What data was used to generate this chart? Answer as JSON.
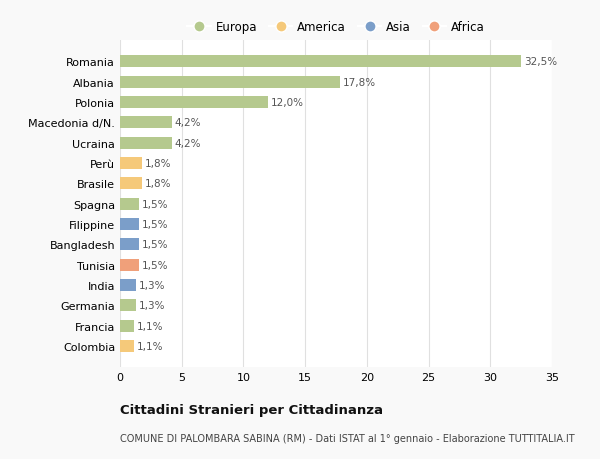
{
  "categories": [
    "Romania",
    "Albania",
    "Polonia",
    "Macedonia d/N.",
    "Ucraina",
    "Perù",
    "Brasile",
    "Spagna",
    "Filippine",
    "Bangladesh",
    "Tunisia",
    "India",
    "Germania",
    "Francia",
    "Colombia"
  ],
  "values": [
    32.5,
    17.8,
    12.0,
    4.2,
    4.2,
    1.8,
    1.8,
    1.5,
    1.5,
    1.5,
    1.5,
    1.3,
    1.3,
    1.1,
    1.1
  ],
  "labels": [
    "32,5%",
    "17,8%",
    "12,0%",
    "4,2%",
    "4,2%",
    "1,8%",
    "1,8%",
    "1,5%",
    "1,5%",
    "1,5%",
    "1,5%",
    "1,3%",
    "1,3%",
    "1,1%",
    "1,1%"
  ],
  "bar_colors": [
    "#b5c98e",
    "#b5c98e",
    "#b5c98e",
    "#b5c98e",
    "#b5c98e",
    "#f5c97a",
    "#f5c97a",
    "#b5c98e",
    "#7b9ec9",
    "#7b9ec9",
    "#f0a07a",
    "#7b9ec9",
    "#b5c98e",
    "#b5c98e",
    "#f5c97a"
  ],
  "legend_labels": [
    "Europa",
    "America",
    "Asia",
    "Africa"
  ],
  "legend_colors": [
    "#b5c98e",
    "#f5c97a",
    "#7b9ec9",
    "#f0a07a"
  ],
  "title": "Cittadini Stranieri per Cittadinanza",
  "subtitle": "COMUNE DI PALOMBARA SABINA (RM) - Dati ISTAT al 1° gennaio - Elaborazione TUTTITALIA.IT",
  "xlim": [
    0,
    35
  ],
  "xticks": [
    0,
    5,
    10,
    15,
    20,
    25,
    30,
    35
  ],
  "background_color": "#f9f9f9",
  "bar_background": "#ffffff",
  "grid_color": "#e0e0e0"
}
